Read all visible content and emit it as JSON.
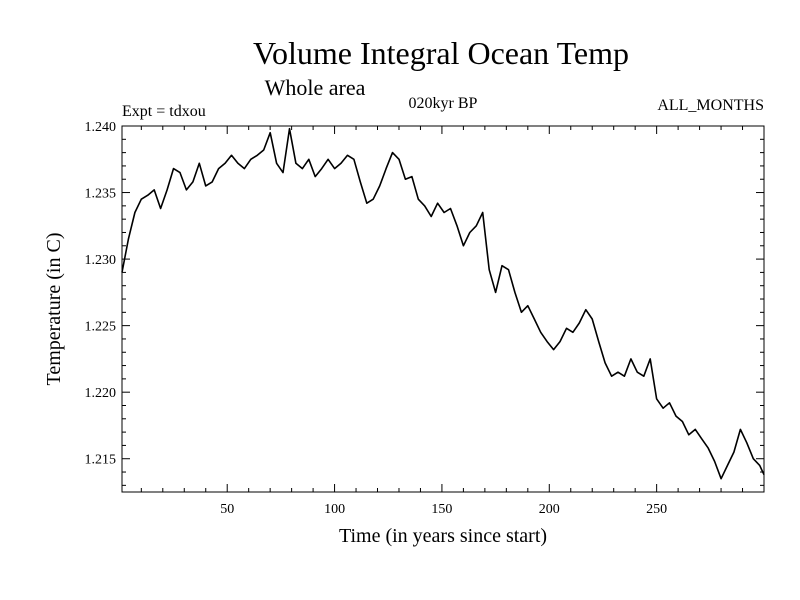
{
  "chart_data": {
    "type": "line",
    "title": "Volume Integral Ocean Temp",
    "subtitle": "Whole area",
    "experiment": "Expt = tdxou",
    "period": "020kyr BP",
    "months": "ALL_MONTHS",
    "xlabel": "Time (in years since start)",
    "ylabel": "Temperature (in C)",
    "xlim": [
      1,
      300
    ],
    "ylim": [
      1.2125,
      1.24
    ],
    "xticks": [
      50,
      100,
      150,
      200,
      250
    ],
    "yticks": [
      1.215,
      1.22,
      1.225,
      1.23,
      1.235,
      1.24
    ],
    "ytick_labels": [
      "1.215",
      "1.220",
      "1.225",
      "1.230",
      "1.235",
      "1.240"
    ],
    "grid": false,
    "series": [
      {
        "color": "#000000",
        "x": [
          1,
          4,
          7,
          10,
          13,
          16,
          19,
          22,
          25,
          28,
          31,
          34,
          37,
          40,
          43,
          46,
          49,
          52,
          55,
          58,
          61,
          64,
          67,
          70,
          73,
          76,
          79,
          82,
          85,
          88,
          91,
          94,
          97,
          100,
          103,
          106,
          109,
          112,
          115,
          118,
          121,
          124,
          127,
          130,
          133,
          136,
          139,
          142,
          145,
          148,
          151,
          154,
          157,
          160,
          163,
          166,
          169,
          172,
          175,
          178,
          181,
          184,
          187,
          190,
          193,
          196,
          199,
          202,
          205,
          208,
          211,
          214,
          217,
          220,
          223,
          226,
          229,
          232,
          235,
          238,
          241,
          244,
          247,
          250,
          253,
          256,
          259,
          262,
          265,
          268,
          271,
          274,
          277,
          280,
          283,
          286,
          289,
          292,
          295,
          298,
          300
        ],
        "y": [
          1.229,
          1.2315,
          1.2335,
          1.2345,
          1.2348,
          1.2352,
          1.2338,
          1.2352,
          1.2368,
          1.2365,
          1.2352,
          1.2358,
          1.2372,
          1.2355,
          1.2358,
          1.2368,
          1.2372,
          1.2378,
          1.2372,
          1.2368,
          1.2375,
          1.2378,
          1.2382,
          1.2395,
          1.2372,
          1.2365,
          1.2398,
          1.2372,
          1.2368,
          1.2375,
          1.2362,
          1.2368,
          1.2375,
          1.2368,
          1.2372,
          1.2378,
          1.2375,
          1.2358,
          1.2342,
          1.2345,
          1.2355,
          1.2368,
          1.238,
          1.2375,
          1.236,
          1.2362,
          1.2345,
          1.234,
          1.2332,
          1.2342,
          1.2335,
          1.2338,
          1.2325,
          1.231,
          1.232,
          1.2325,
          1.2335,
          1.2292,
          1.2275,
          1.2295,
          1.2292,
          1.2275,
          1.226,
          1.2265,
          1.2255,
          1.2245,
          1.2238,
          1.2232,
          1.2238,
          1.2248,
          1.2245,
          1.2252,
          1.2262,
          1.2255,
          1.2238,
          1.2222,
          1.2212,
          1.2215,
          1.2212,
          1.2225,
          1.2215,
          1.2212,
          1.2225,
          1.2195,
          1.2188,
          1.2192,
          1.2182,
          1.2178,
          1.2168,
          1.2172,
          1.2165,
          1.2158,
          1.2148,
          1.2135,
          1.2145,
          1.2155,
          1.2172,
          1.2162,
          1.215,
          1.2145,
          1.2138
        ]
      }
    ]
  }
}
